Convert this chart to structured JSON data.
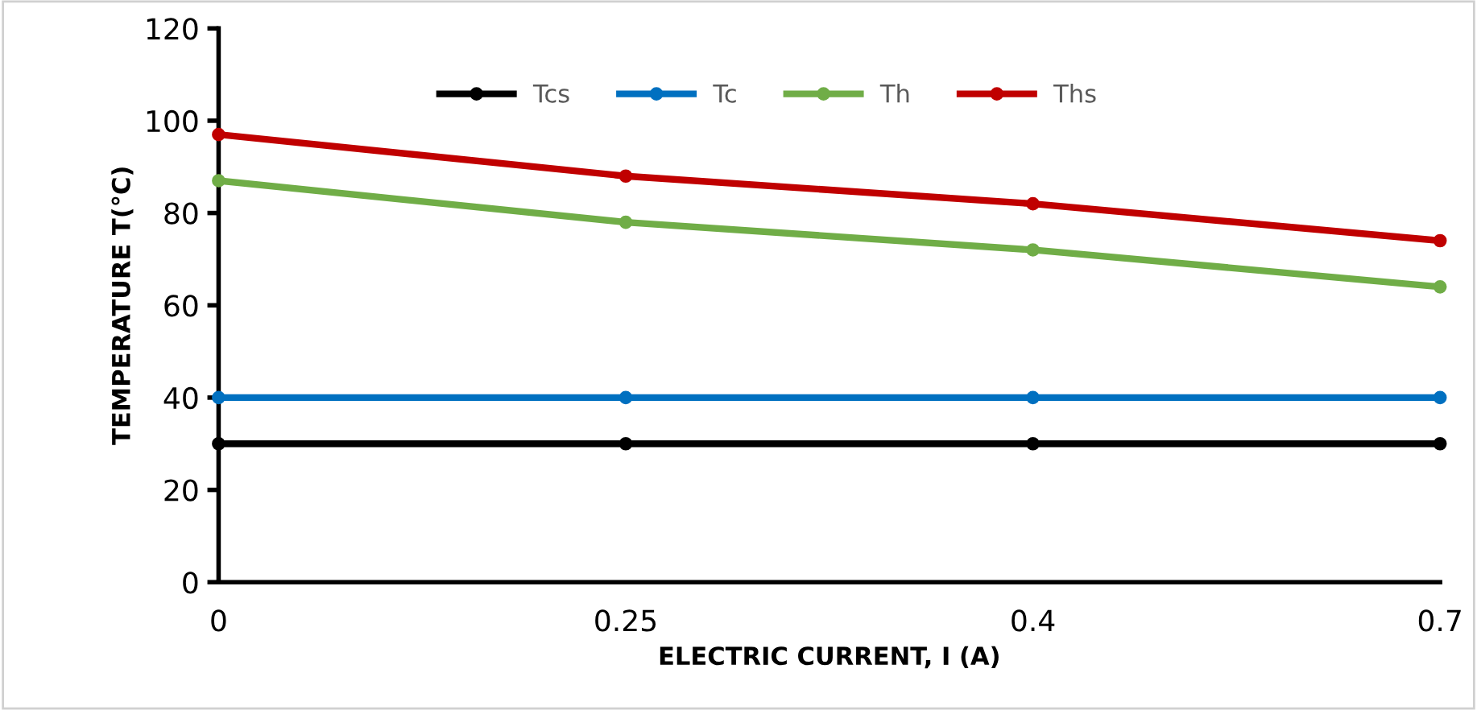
{
  "chart_data": {
    "type": "line",
    "xlabel": "ELECTRIC CURRENT, I (A)",
    "ylabel": "TEMPERATURE T(°C)",
    "categories": [
      "0",
      "0.25",
      "0.4",
      "0.7"
    ],
    "series": [
      {
        "name": "Tcs",
        "color": "#000000",
        "values": [
          30,
          30,
          30,
          30
        ]
      },
      {
        "name": "Tc",
        "color": "#0070c0",
        "values": [
          40,
          40,
          40,
          40
        ]
      },
      {
        "name": "Th",
        "color": "#70ad47",
        "values": [
          87,
          78,
          72,
          64
        ]
      },
      {
        "name": "Ths",
        "color": "#c00000",
        "values": [
          97,
          88,
          82,
          74
        ]
      }
    ],
    "ylim": [
      0,
      120
    ],
    "yticks": [
      0,
      20,
      40,
      60,
      80,
      100,
      120
    ],
    "grid": false,
    "legend": "top",
    "marker": "circle",
    "line_style": "solid"
  }
}
